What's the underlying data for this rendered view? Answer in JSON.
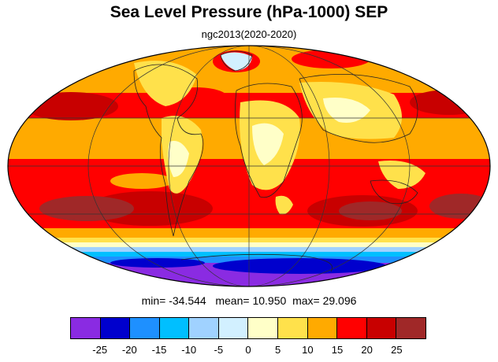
{
  "title": "Sea Level Pressure (hPa-1000) SEP",
  "subtitle": "ngc2013(2020-2020)",
  "stats": {
    "min_label": "min=",
    "min": "-34.544",
    "mean_label": "mean=",
    "mean": "10.950",
    "max_label": "max=",
    "max": "29.096"
  },
  "colorbar": {
    "colors": [
      "#8a2be2",
      "#0000cd",
      "#1e90ff",
      "#00bfff",
      "#a0d2ff",
      "#d2f0ff",
      "#ffffc8",
      "#ffe14b",
      "#ffaa00",
      "#ff0000",
      "#c80000",
      "#a02828"
    ],
    "labels": [
      "-25",
      "-20",
      "-15",
      "-10",
      "-5",
      "0",
      "5",
      "10",
      "15",
      "20",
      "25"
    ]
  },
  "map": {
    "projection": "mollweide",
    "field": "sea-level-pressure"
  }
}
